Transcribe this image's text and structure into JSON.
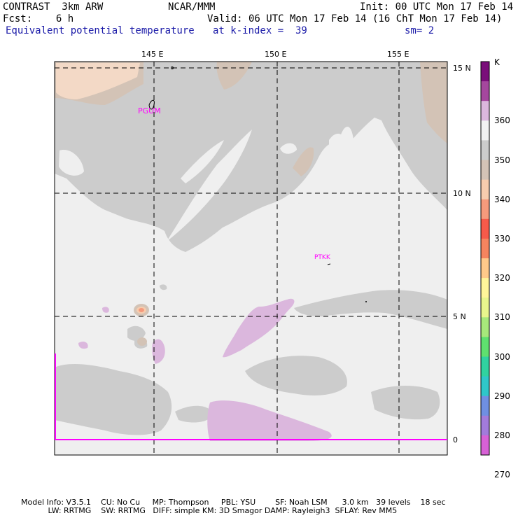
{
  "header": {
    "line1_left": "CONTRAST  3km ARW",
    "line1_mid": "NCAR/MMM",
    "line1_right": "Init: 00 UTC Mon 17 Feb 14",
    "line2_left": "Fcst:    6 h",
    "line2_right": "Valid: 06 UTC Mon 17 Feb 14 (16 ChT Mon 17 Feb 14)",
    "line3_field": "Equivalent potential temperature",
    "line3_level": "at k-index =  39",
    "line3_smooth": "sm= 2"
  },
  "map": {
    "lon_labels": [
      "145 E",
      "150 E",
      "155 E"
    ],
    "lat_labels": [
      "15 N",
      "10 N",
      "5 N",
      "0"
    ],
    "stations": [
      {
        "id": "PGUM",
        "label": "PGUM"
      },
      {
        "id": "PTKK",
        "label": "PTKK"
      }
    ]
  },
  "colorbar": {
    "unit": "K",
    "levels": [
      "360",
      "350",
      "340",
      "330",
      "320",
      "310",
      "300",
      "290",
      "280",
      "270"
    ],
    "colors": [
      "#7a0e7a",
      "#a5479e",
      "#dbb7dd",
      "#f2f2f2",
      "#cccccc",
      "#d3c3b6",
      "#f6ccae",
      "#f59a7c",
      "#f65a4a",
      "#f5845f",
      "#ffc98a",
      "#fff59a",
      "#e8f58d",
      "#a7e87b",
      "#5fe06f",
      "#31d2a0",
      "#2fc7c9",
      "#6f8fe2",
      "#a27bdb",
      "#d761d6"
    ]
  },
  "footer": {
    "line1": "Model Info: V3.5.1    CU: No Cu     MP: Thompson     PBL: YSU        SF: Noah LSM      3.0 km   39 levels    18 sec",
    "line2": "           LW: RRTMG    SW: RRTMG   DIFF: simple KM: 3D Smagor DAMP: Rayleigh3  SFLAY: Rev MM5"
  }
}
